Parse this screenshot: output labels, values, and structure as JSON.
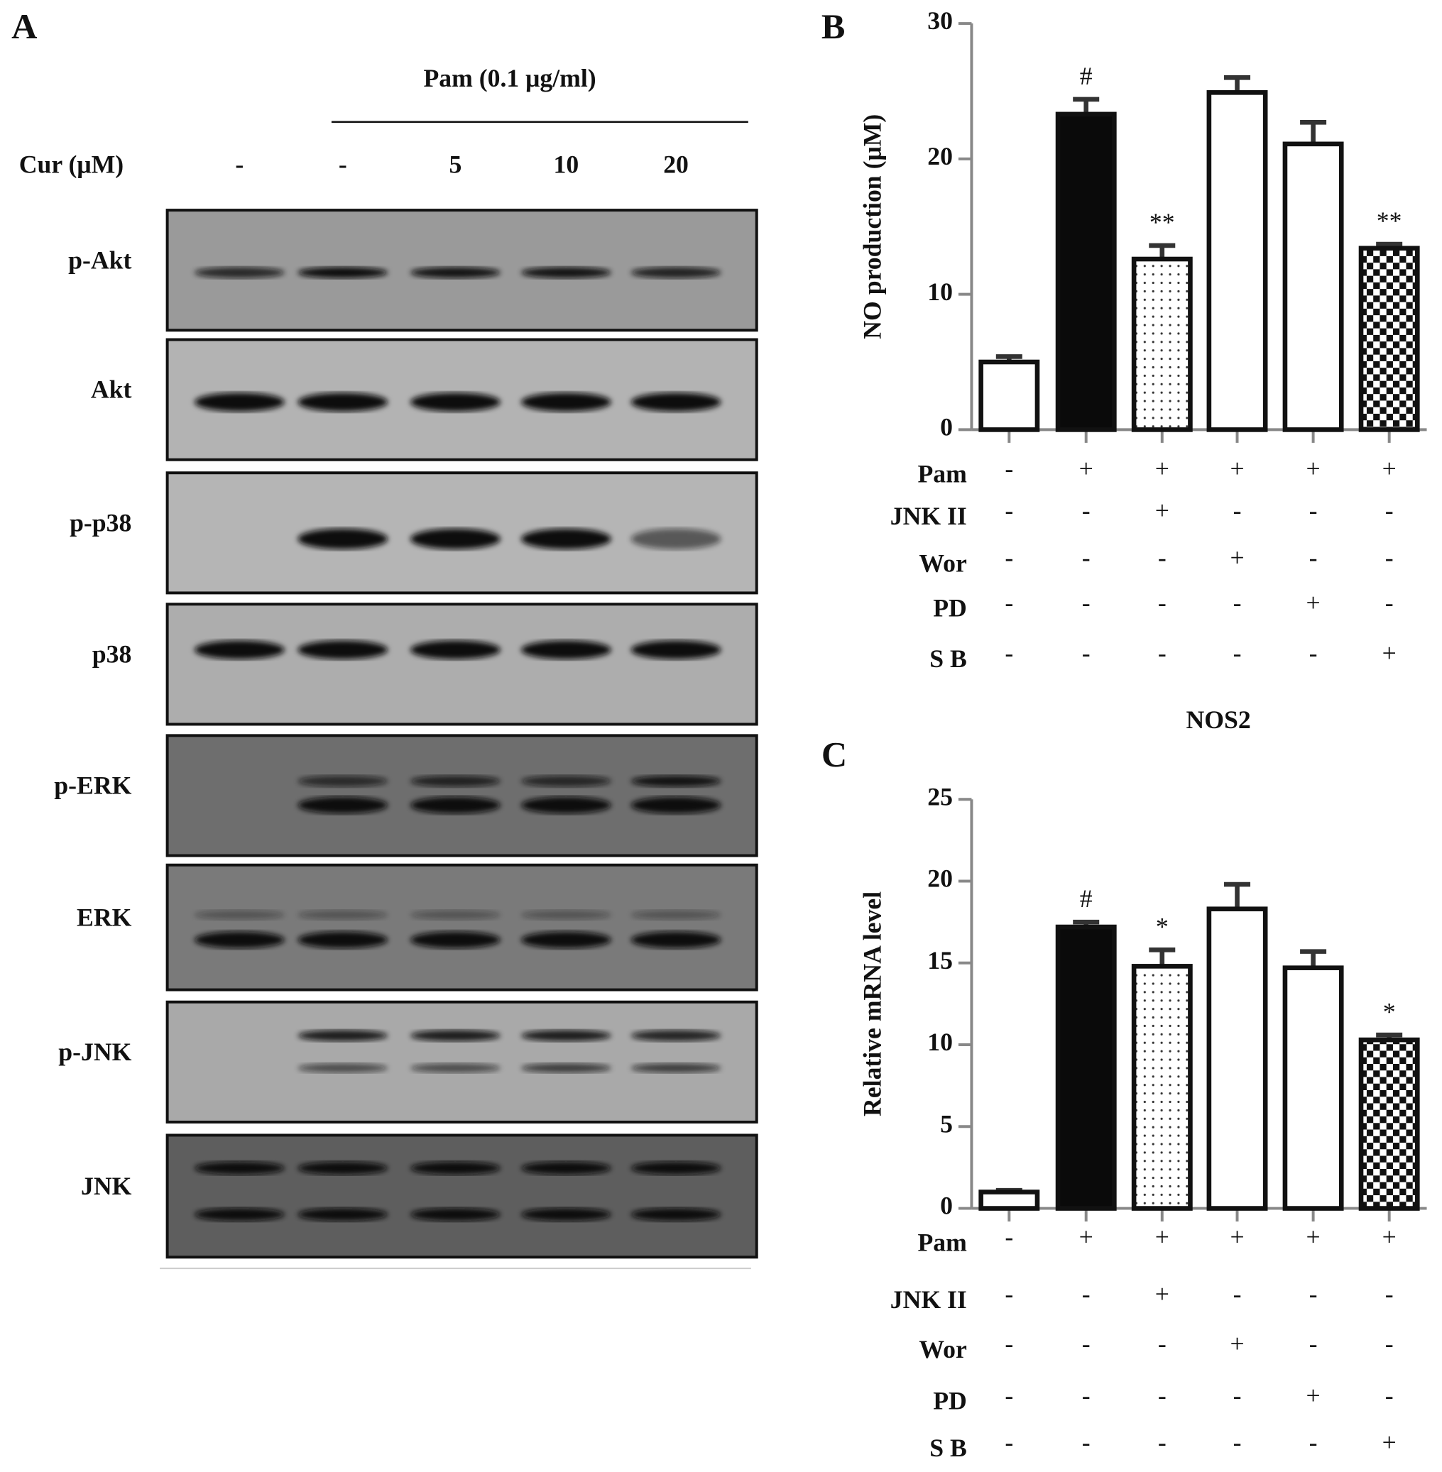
{
  "blot": {
    "label": "A",
    "treatment": "Pam (0.1 μg/ml)",
    "dose_label": "Cur (μM)",
    "doses": [
      "-",
      "-",
      "5",
      "10",
      "20"
    ],
    "rows": [
      "p-Akt",
      "Akt",
      "p-p38",
      "p38",
      "p-ERK",
      "ERK",
      "p-JNK",
      "JNK"
    ]
  },
  "chart_data": [
    {
      "type": "bar",
      "label": "B",
      "y_label": "NO production (μM)",
      "categories": [
        null,
        null,
        null,
        null,
        null,
        null
      ],
      "values": [
        5.0,
        23.3,
        12.6,
        24.9,
        21.1,
        13.4
      ],
      "errors": [
        0.4,
        1.1,
        1.0,
        1.1,
        1.6,
        0.3
      ],
      "annotations": [
        null,
        "#",
        "**",
        null,
        null,
        "**"
      ],
      "fills": [
        "white",
        "black",
        "dots",
        "white",
        "white",
        "checker"
      ],
      "ylim": [
        0,
        30
      ],
      "yticks": [
        0,
        10,
        20,
        30
      ],
      "treatments": [
        {
          "name": "Pam",
          "signs": [
            "-",
            "+",
            "+",
            "+",
            "+",
            "+"
          ]
        },
        {
          "name": "JNK II",
          "signs": [
            "-",
            "-",
            "+",
            "-",
            "-",
            "-"
          ]
        },
        {
          "name": "Wor",
          "signs": [
            "-",
            "-",
            "-",
            "+",
            "-",
            "-"
          ]
        },
        {
          "name": "PD",
          "signs": [
            "-",
            "-",
            "-",
            "-",
            "+",
            "-"
          ]
        },
        {
          "name": "S B",
          "signs": [
            "-",
            "-",
            "-",
            "-",
            "-",
            "+"
          ]
        }
      ]
    },
    {
      "type": "bar",
      "label": "C",
      "title": "NOS2",
      "y_label": "Relative mRNA level",
      "categories": [
        null,
        null,
        null,
        null,
        null,
        null
      ],
      "values": [
        1.0,
        17.2,
        14.8,
        18.3,
        14.7,
        10.3
      ],
      "errors": [
        0.1,
        0.3,
        1.0,
        1.5,
        1.0,
        0.3
      ],
      "annotations": [
        null,
        "#",
        "*",
        null,
        null,
        "*"
      ],
      "fills": [
        "white",
        "black",
        "dots",
        "white",
        "white",
        "checker"
      ],
      "ylim": [
        0,
        25
      ],
      "yticks": [
        0,
        5,
        10,
        15,
        20,
        25
      ],
      "treatments": [
        {
          "name": "Pam",
          "signs": [
            "-",
            "+",
            "+",
            "+",
            "+",
            "+"
          ]
        },
        {
          "name": "JNK II",
          "signs": [
            "-",
            "-",
            "+",
            "-",
            "-",
            "-"
          ]
        },
        {
          "name": "Wor",
          "signs": [
            "-",
            "-",
            "-",
            "+",
            "-",
            "-"
          ]
        },
        {
          "name": "PD",
          "signs": [
            "-",
            "-",
            "-",
            "-",
            "+",
            "-"
          ]
        },
        {
          "name": "S B",
          "signs": [
            "-",
            "-",
            "-",
            "-",
            "-",
            "+"
          ]
        }
      ]
    }
  ]
}
